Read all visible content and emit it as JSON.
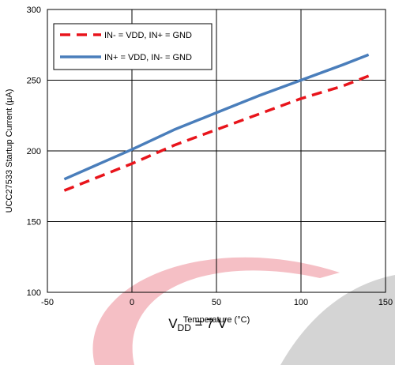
{
  "chart_data": {
    "type": "line",
    "title": "",
    "xlabel": "Temperature (°C)",
    "ylabel": "UCC27533 Startup Current (µA)",
    "xlim": [
      -50,
      150
    ],
    "ylim": [
      100,
      300
    ],
    "xticks": [
      -50,
      0,
      50,
      100,
      150
    ],
    "yticks": [
      100,
      150,
      200,
      250,
      300
    ],
    "grid": true,
    "legend_position": "top-left",
    "series": [
      {
        "name": "IN- = VDD, IN+ = GND",
        "color": "#e8141b",
        "dash": "dashed",
        "x": [
          -40,
          0,
          25,
          50,
          75,
          100,
          125,
          140
        ],
        "y": [
          172,
          191,
          204,
          215,
          226,
          237,
          246,
          253
        ]
      },
      {
        "name": "IN+ = VDD, IN- = GND",
        "color": "#4a7ebb",
        "dash": "solid",
        "x": [
          -40,
          0,
          25,
          50,
          75,
          100,
          125,
          140
        ],
        "y": [
          180,
          201,
          215,
          227,
          239,
          250,
          261,
          268
        ]
      }
    ],
    "annotation": {
      "main": "V",
      "sub": "DD",
      "rest": " = 7 V"
    }
  }
}
